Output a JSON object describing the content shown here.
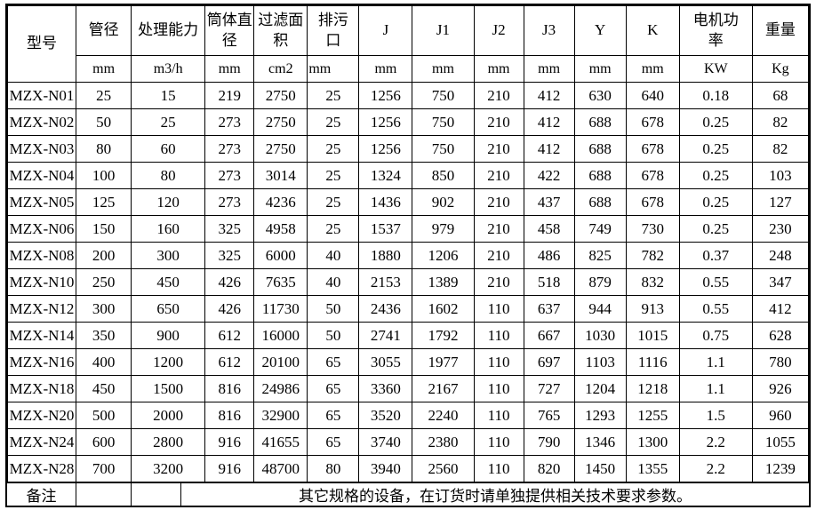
{
  "page": {
    "background_color": "#ffffff",
    "border_color": "#000000",
    "text_color": "#000000"
  },
  "table": {
    "model_header": "型号",
    "columns": [
      {
        "label": "管径",
        "unit": "mm"
      },
      {
        "label": "处理能力",
        "unit": "m3/h"
      },
      {
        "label": "筒体直径",
        "unit": "mm"
      },
      {
        "label": "过滤面积",
        "unit": "cm2"
      },
      {
        "label": "排污口",
        "unit": "mm"
      },
      {
        "label": "J",
        "unit": "mm"
      },
      {
        "label": "J1",
        "unit": "mm"
      },
      {
        "label": "J2",
        "unit": "mm"
      },
      {
        "label": "J3",
        "unit": "mm"
      },
      {
        "label": "Y",
        "unit": "mm"
      },
      {
        "label": "K",
        "unit": "mm"
      },
      {
        "label": "电机功率",
        "unit": "KW"
      },
      {
        "label": "重量",
        "unit": "Kg"
      }
    ],
    "rows": [
      {
        "model": "MZX-N01",
        "values": [
          "25",
          "15",
          "219",
          "2750",
          "25",
          "1256",
          "750",
          "210",
          "412",
          "630",
          "640",
          "0.18",
          "68"
        ]
      },
      {
        "model": "MZX-N02",
        "values": [
          "50",
          "25",
          "273",
          "2750",
          "25",
          "1256",
          "750",
          "210",
          "412",
          "688",
          "678",
          "0.25",
          "82"
        ]
      },
      {
        "model": "MZX-N03",
        "values": [
          "80",
          "60",
          "273",
          "2750",
          "25",
          "1256",
          "750",
          "210",
          "412",
          "688",
          "678",
          "0.25",
          "82"
        ]
      },
      {
        "model": "MZX-N04",
        "values": [
          "100",
          "80",
          "273",
          "3014",
          "25",
          "1324",
          "850",
          "210",
          "422",
          "688",
          "678",
          "0.25",
          "103"
        ]
      },
      {
        "model": "MZX-N05",
        "values": [
          "125",
          "120",
          "273",
          "4236",
          "25",
          "1436",
          "902",
          "210",
          "437",
          "688",
          "678",
          "0.25",
          "127"
        ]
      },
      {
        "model": "MZX-N06",
        "values": [
          "150",
          "160",
          "325",
          "4958",
          "25",
          "1537",
          "979",
          "210",
          "458",
          "749",
          "730",
          "0.25",
          "230"
        ]
      },
      {
        "model": "MZX-N08",
        "values": [
          "200",
          "300",
          "325",
          "6000",
          "40",
          "1880",
          "1206",
          "210",
          "486",
          "825",
          "782",
          "0.37",
          "248"
        ]
      },
      {
        "model": "MZX-N10",
        "values": [
          "250",
          "450",
          "426",
          "7635",
          "40",
          "2153",
          "1389",
          "210",
          "518",
          "879",
          "832",
          "0.55",
          "347"
        ]
      },
      {
        "model": "MZX-N12",
        "values": [
          "300",
          "650",
          "426",
          "11730",
          "50",
          "2436",
          "1602",
          "110",
          "637",
          "944",
          "913",
          "0.55",
          "412"
        ]
      },
      {
        "model": "MZX-N14",
        "values": [
          "350",
          "900",
          "612",
          "16000",
          "50",
          "2741",
          "1792",
          "110",
          "667",
          "1030",
          "1015",
          "0.75",
          "628"
        ]
      },
      {
        "model": "MZX-N16",
        "values": [
          "400",
          "1200",
          "612",
          "20100",
          "65",
          "3055",
          "1977",
          "110",
          "697",
          "1103",
          "1116",
          "1.1",
          "780"
        ]
      },
      {
        "model": "MZX-N18",
        "values": [
          "450",
          "1500",
          "816",
          "24986",
          "65",
          "3360",
          "2167",
          "110",
          "727",
          "1204",
          "1218",
          "1.1",
          "926"
        ]
      },
      {
        "model": "MZX-N20",
        "values": [
          "500",
          "2000",
          "816",
          "32900",
          "65",
          "3520",
          "2240",
          "110",
          "765",
          "1293",
          "1255",
          "1.5",
          "960"
        ]
      },
      {
        "model": "MZX-N24",
        "values": [
          "600",
          "2800",
          "916",
          "41655",
          "65",
          "3740",
          "2380",
          "110",
          "790",
          "1346",
          "1300",
          "2.2",
          "1055"
        ]
      },
      {
        "model": "MZX-N28",
        "values": [
          "700",
          "3200",
          "916",
          "48700",
          "80",
          "3940",
          "2560",
          "110",
          "820",
          "1450",
          "1355",
          "2.2",
          "1239"
        ]
      }
    ],
    "footer": {
      "label": "备注",
      "note": "其它规格的设备，在订货时请单独提供相关技术要求参数。"
    }
  }
}
